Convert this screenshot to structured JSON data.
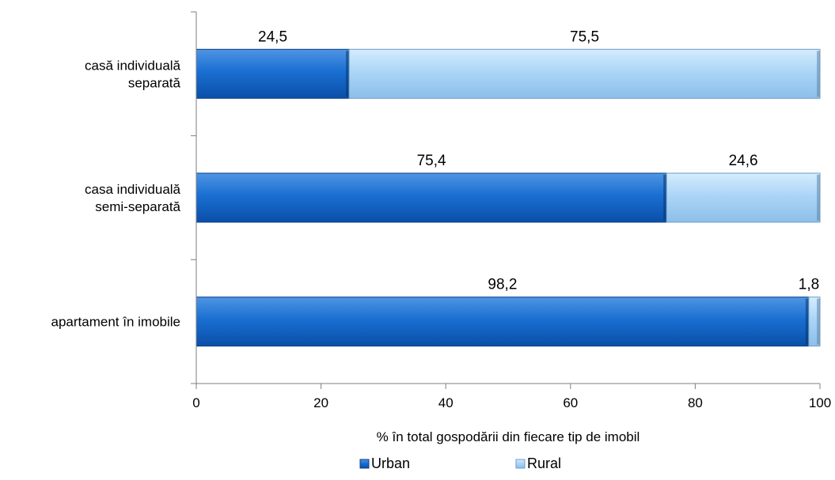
{
  "chart_data": {
    "type": "bar",
    "orientation": "horizontal",
    "stacked": true,
    "categories": [
      [
        "casă individuală",
        "separată"
      ],
      [
        "casa individuală",
        "semi-separată"
      ],
      [
        "apartament în imobile"
      ]
    ],
    "series": [
      {
        "name": "Urban",
        "values": [
          24.5,
          75.4,
          98.2
        ],
        "labels": [
          "24,5",
          "75,4",
          "98,2"
        ],
        "color": "#1565c8"
      },
      {
        "name": "Rural",
        "values": [
          75.5,
          24.6,
          1.8
        ],
        "labels": [
          "75,5",
          "24,6",
          "1,8"
        ],
        "color": "#a8d2f5"
      }
    ],
    "xlabel": "% în total gospodării din fiecare tip de imobil",
    "xlim": [
      0,
      100
    ],
    "xticks": [
      "0",
      "20",
      "40",
      "60",
      "80",
      "100"
    ],
    "legend_position": "bottom",
    "grid": false
  }
}
